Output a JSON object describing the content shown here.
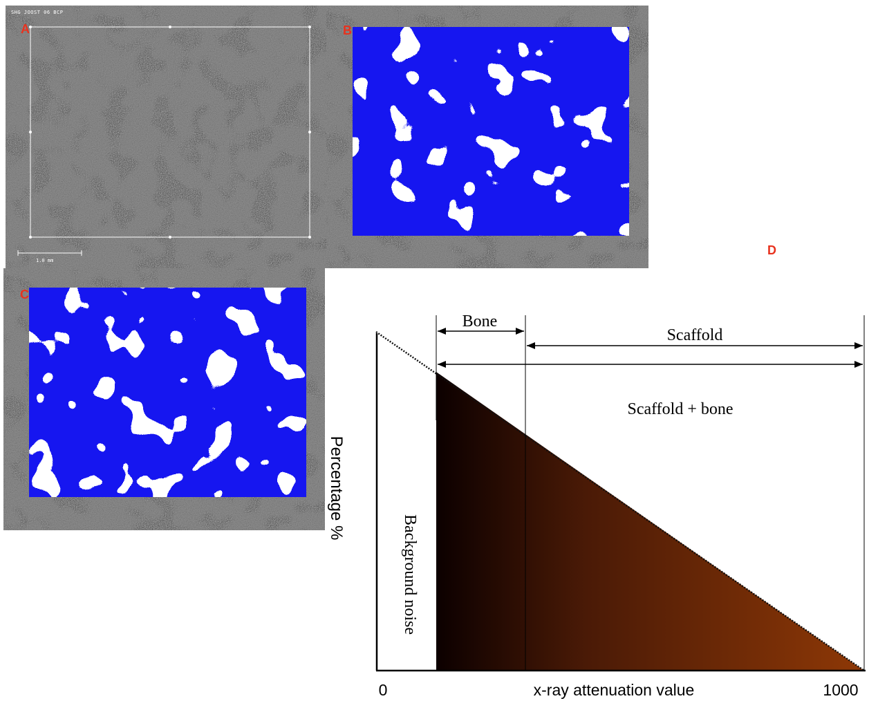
{
  "panels": {
    "a": {
      "letter": "A",
      "scan_header": "SHG JOOST 06 BCP",
      "scale_bar_label": "1.0 mm"
    },
    "b": {
      "letter": "B"
    },
    "c": {
      "letter": "C"
    },
    "d": {
      "letter": "D"
    }
  },
  "diagram": {
    "y_axis_label": "Percentage %",
    "x_axis_label": "x-ray attenuation value",
    "x_min_label": "0",
    "x_max_label": "1000",
    "background_label": "Background noise",
    "bone_label": "Bone",
    "scaffold_label": "Scaffold",
    "scaffold_bone_label": "Scaffold + bone"
  },
  "colors": {
    "segment_blue": "#1212f0",
    "label_red": "#e8321e",
    "gradient_dark": "#0c0000",
    "gradient_light": "#8e3806"
  }
}
